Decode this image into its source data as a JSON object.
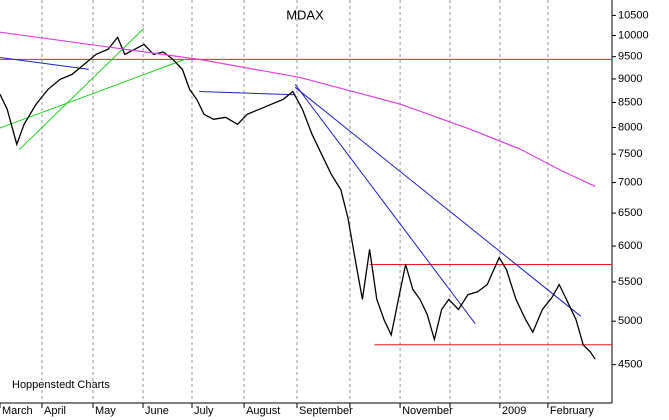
{
  "chart_data": {
    "type": "line",
    "title": "MDAX",
    "source": "Hoppenstedt Charts",
    "yscale": "log",
    "ylim": [
      4100,
      10900
    ],
    "yticks": [
      4500,
      5000,
      5500,
      6000,
      6500,
      7000,
      7500,
      8000,
      8500,
      9000,
      9500,
      10000,
      10500
    ],
    "xlim": [
      0,
      255
    ],
    "xticks": [
      {
        "value": 0,
        "label": "March"
      },
      {
        "value": 17.5,
        "label": "April"
      },
      {
        "value": 38.75,
        "label": "May"
      },
      {
        "value": 59.6,
        "label": "June"
      },
      {
        "value": 80,
        "label": "July"
      },
      {
        "value": 101.7,
        "label": "August"
      },
      {
        "value": 123.75,
        "label": "September"
      },
      {
        "value": 145.8,
        "label": null
      },
      {
        "value": 166.7,
        "label": "November"
      },
      {
        "value": 187.5,
        "label": null
      },
      {
        "value": 208.3,
        "label": "2009"
      },
      {
        "value": 228.3,
        "label": "February"
      }
    ],
    "grid": true,
    "series": [
      {
        "color": "#000000",
        "x": [
          0,
          3,
          7,
          10,
          15,
          20,
          25,
          30,
          35,
          40,
          45,
          49,
          52,
          56,
          60,
          64,
          68,
          72,
          76,
          79,
          82,
          85,
          89,
          94,
          99,
          103,
          108,
          113,
          118,
          122,
          126,
          130,
          134,
          138,
          142,
          145,
          148,
          151,
          154,
          157,
          160,
          163,
          166,
          169,
          172,
          175,
          178,
          181,
          184,
          187,
          191,
          195,
          199,
          203,
          208,
          211,
          215,
          219,
          222,
          226,
          230,
          233,
          236,
          240,
          243,
          246,
          248
        ],
        "values": [
          8670,
          8360,
          7680,
          8060,
          8460,
          8775,
          8990,
          9100,
          9322,
          9552,
          9668,
          9954,
          9552,
          9668,
          9786,
          9552,
          9610,
          9437,
          9211,
          8775,
          8565,
          8260,
          8160,
          8200,
          8062,
          8260,
          8360,
          8462,
          8565,
          8730,
          8360,
          7870,
          7496,
          7142,
          6881,
          6420,
          5809,
          5272,
          5950,
          5272,
          5019,
          4837,
          5272,
          5737,
          5402,
          5272,
          5082,
          4783,
          5144,
          5272,
          5144,
          5334,
          5370,
          5465,
          5836,
          5668,
          5272,
          5019,
          4868,
          5144,
          5297,
          5465,
          5272,
          5019,
          4722,
          4640,
          4560
        ]
      },
      {
        "color": "#e040e0",
        "x": [
          0,
          83,
          125,
          167,
          196,
          217,
          233,
          248
        ],
        "values": [
          10080,
          9437,
          9033,
          8462,
          7965,
          7585,
          7224,
          6934
        ]
      }
    ],
    "horizontal_lines": [
      {
        "color": "#e02020",
        "value": 9437,
        "from": 0
      },
      {
        "color": "#e02020",
        "value": 5737,
        "from": 154
      },
      {
        "color": "#e02020",
        "value": 4722,
        "from": 156
      }
    ],
    "trend_lines": [
      {
        "color": "#2020c0",
        "x": [
          0,
          37
        ],
        "y": [
          9480,
          9210
        ]
      },
      {
        "color": "#20d020",
        "x": [
          0,
          77
        ],
        "y": [
          7990,
          9437
        ]
      },
      {
        "color": "#20d020",
        "x": [
          8,
          60
        ],
        "y": [
          7580,
          10180
        ]
      },
      {
        "color": "#2020c0",
        "x": [
          83,
          123
        ],
        "y": [
          8730,
          8660
        ]
      },
      {
        "color": "#2020c0",
        "x": [
          123,
          198
        ],
        "y": [
          8880,
          4970
        ]
      },
      {
        "color": "#2020c0",
        "x": [
          123,
          242
        ],
        "y": [
          8820,
          5060
        ]
      }
    ]
  }
}
